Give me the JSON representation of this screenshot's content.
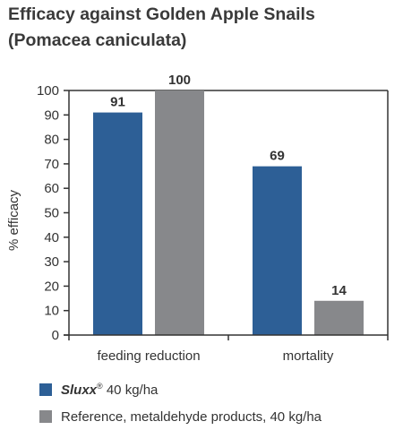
{
  "chart_data": {
    "type": "bar",
    "title_lines": [
      "Efficacy against Golden Apple Snails",
      "(Pomacea caniculata)"
    ],
    "ylabel": "% efficacy",
    "xlabel": "",
    "ylim": [
      0,
      100
    ],
    "yticks": [
      0,
      10,
      20,
      30,
      40,
      50,
      60,
      70,
      80,
      90,
      100
    ],
    "categories": [
      "feeding reduction",
      "mortality"
    ],
    "series": [
      {
        "name": "Sluxx® 40 kg/ha",
        "name_brand": "Sluxx",
        "name_mark": "®",
        "name_rest": " 40 kg/ha",
        "color": "#2d5f96",
        "values": [
          91,
          69
        ]
      },
      {
        "name": "Reference, metaldehyde products, 40 kg/ha",
        "color": "#87888b",
        "values": [
          100,
          14
        ]
      }
    ],
    "grid": false,
    "legend_position": "bottom-left"
  }
}
